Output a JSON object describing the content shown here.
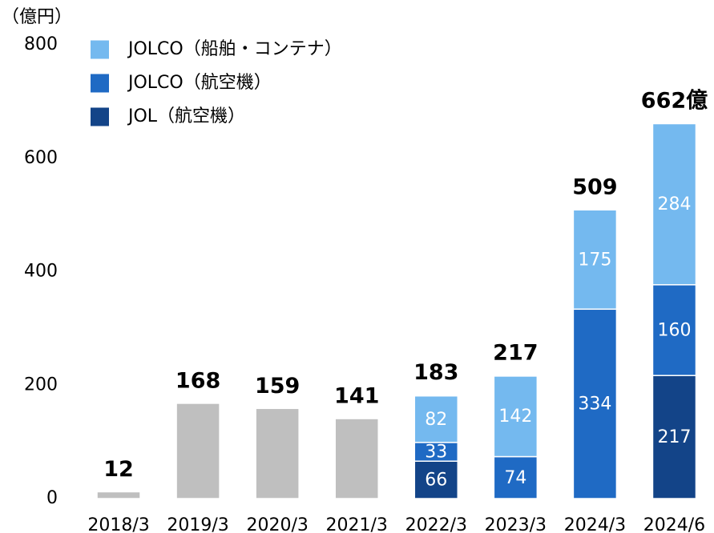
{
  "chart_data": {
    "type": "bar",
    "stacked": true,
    "y_label": "（億円）",
    "categories": [
      "2018/3",
      "2019/3",
      "2020/3",
      "2021/3",
      "2022/3",
      "2023/3",
      "2024/3",
      "2024/6"
    ],
    "series": [
      {
        "name": "JOLCO（船舶・コンテナ）",
        "color": "#74b9ef",
        "values": [
          null,
          null,
          null,
          null,
          82,
          142,
          175,
          284
        ]
      },
      {
        "name": "JOLCO（航空機）",
        "color": "#1f6ac4",
        "values": [
          null,
          null,
          null,
          null,
          33,
          74,
          334,
          160
        ]
      },
      {
        "name": "JOL（航空機）",
        "color": "#134488",
        "values": [
          null,
          null,
          null,
          null,
          66,
          null,
          null,
          217
        ]
      },
      {
        "color": "#bfbfbf",
        "values": [
          12,
          168,
          159,
          141,
          null,
          null,
          null,
          null
        ]
      }
    ],
    "totals": {
      "values": [
        12,
        168,
        159,
        141,
        183,
        217,
        509,
        662
      ],
      "value_labels": [
        "12",
        "168",
        "159",
        "141",
        "183",
        "217",
        "509",
        "662億"
      ]
    },
    "ylim": [
      0,
      800
    ],
    "yticks": [
      0,
      200,
      400,
      600,
      800
    ],
    "grid": false,
    "legend": "upper left"
  }
}
